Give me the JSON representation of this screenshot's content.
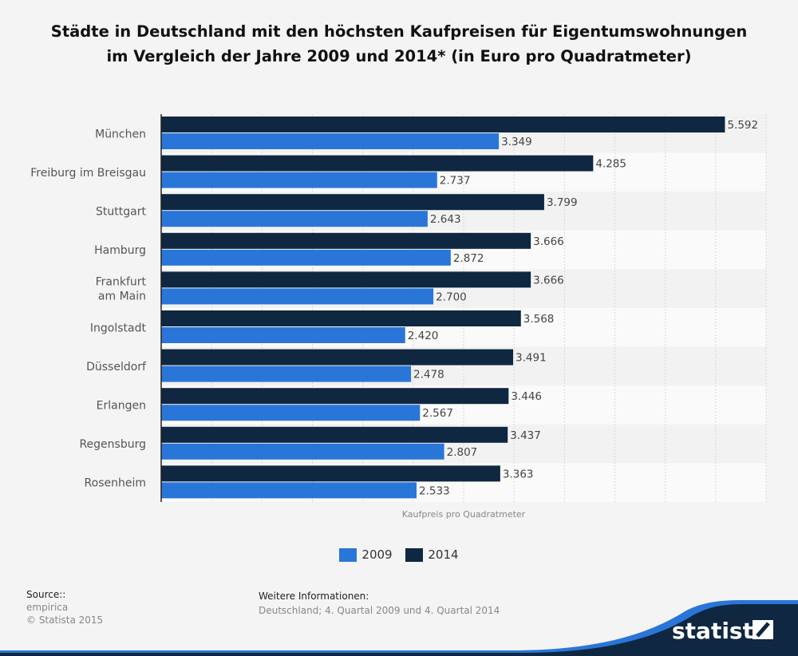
{
  "title": "Städte in Deutschland mit den höchsten Kaufpreisen für Eigentumswohnungen im Vergleich der Jahre 2009 und 2014* (in Euro pro Quadratmeter)",
  "chart_data": {
    "type": "bar",
    "orientation": "horizontal",
    "title": "Städte in Deutschland mit den höchsten Kaufpreisen für Eigentumswohnungen im Vergleich der Jahre 2009 und 2014* (in Euro pro Quadratmeter)",
    "xlabel": "Kaufpreis pro Quadratmeter",
    "categories": [
      "München",
      "Freiburg im Breisgau",
      "Stuttgart",
      "Hamburg",
      "Frankfurt am Main",
      "Ingolstadt",
      "Düsseldorf",
      "Erlangen",
      "Regensburg",
      "Rosenheim"
    ],
    "series": [
      {
        "name": "2014",
        "color": "#0f2740",
        "values": [
          5592,
          4285,
          3799,
          3666,
          3666,
          3568,
          3491,
          3446,
          3437,
          3363
        ],
        "labels": [
          "5.592",
          "4.285",
          "3.799",
          "3.666",
          "3.666",
          "3.568",
          "3.491",
          "3.446",
          "3.437",
          "3.363"
        ]
      },
      {
        "name": "2009",
        "color": "#2a76d8",
        "values": [
          3349,
          2737,
          2643,
          2872,
          2700,
          2420,
          2478,
          2567,
          2807,
          2533
        ],
        "labels": [
          "3.349",
          "2.737",
          "2.643",
          "2.872",
          "2.700",
          "2.420",
          "2.478",
          "2.567",
          "2.807",
          "2.533"
        ]
      }
    ],
    "xlim": [
      0,
      6000
    ],
    "grid": true,
    "legend": "bottom"
  },
  "legend": {
    "items": [
      {
        "label": "2009",
        "color": "#2a76d8"
      },
      {
        "label": "2014",
        "color": "#0f2740"
      }
    ]
  },
  "footer": {
    "source_label": "Source::",
    "source": "empirica",
    "copyright": "© Statista 2015",
    "info_label": "Weitere Informationen:",
    "info": "Deutschland; 4. Quartal 2009 und 4. Quartal 2014",
    "brand": "statista"
  }
}
